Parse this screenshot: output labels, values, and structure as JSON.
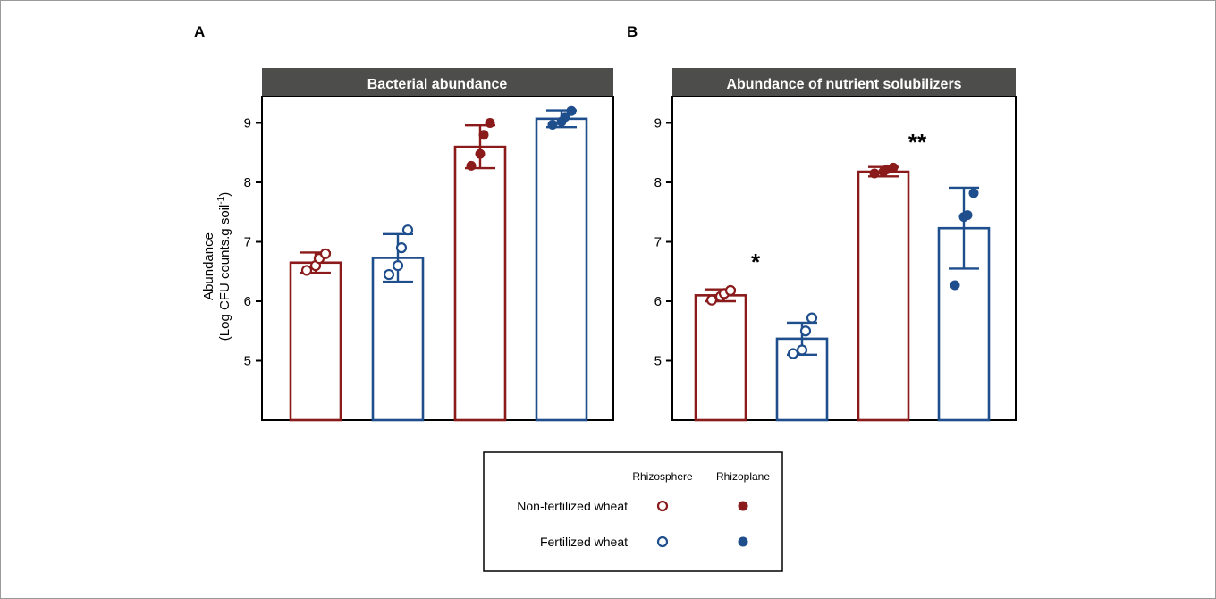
{
  "colors": {
    "non_fertilized": "#8b1a1a",
    "fertilized": "#1f4e8c",
    "header_bg": "#4d4d4b",
    "header_text": "#ffffff",
    "axis": "#000000"
  },
  "panel_letters": [
    "A",
    "B"
  ],
  "y_axis": {
    "label_line1": "Abundance",
    "label_line2_prefix": "(Log CFU counts.g soil",
    "label_line2_sup": "-1",
    "label_line2_suffix": ")"
  },
  "legend": {
    "col_rhizosphere": "Rhizosphere",
    "col_rhizoplane": "Rhizoplane",
    "row_non_fertilized": "Non-fertilized wheat",
    "row_fertilized": "Fertilized wheat"
  },
  "chart_data": [
    {
      "type": "bar",
      "panel": "A",
      "title": "Bacterial abundance",
      "ylabel": "Abundance (Log CFU counts.g soil-1)",
      "ylim": [
        4,
        9.5
      ],
      "yticks": [
        5,
        6,
        7,
        8,
        9
      ],
      "categories": [
        "Non-fertilized wheat Rhizosphere",
        "Fertilized wheat Rhizosphere",
        "Non-fertilized wheat Rhizoplane",
        "Fertilized wheat Rhizoplane"
      ],
      "values": [
        6.65,
        6.73,
        8.6,
        9.07
      ],
      "error": [
        0.17,
        0.4,
        0.36,
        0.14
      ],
      "points": [
        [
          6.52,
          6.6,
          6.72,
          6.8
        ],
        [
          6.45,
          6.6,
          6.9,
          7.2
        ],
        [
          8.28,
          8.48,
          8.8,
          9.0
        ],
        [
          8.97,
          9.02,
          9.1,
          9.2
        ]
      ],
      "series_group": [
        "non_fertilized",
        "fertilized",
        "non_fertilized",
        "fertilized"
      ],
      "marker": [
        "open",
        "open",
        "filled",
        "filled"
      ],
      "annotations": [
        "",
        "",
        "",
        ""
      ]
    },
    {
      "type": "bar",
      "panel": "B",
      "title": "Abundance of nutrient solubilizers",
      "ylabel": "Abundance (Log CFU counts.g soil-1)",
      "ylim": [
        4,
        9.5
      ],
      "yticks": [
        5,
        6,
        7,
        8,
        9
      ],
      "categories": [
        "Non-fertilized wheat Rhizosphere",
        "Fertilized wheat Rhizosphere",
        "Non-fertilized wheat Rhizoplane",
        "Fertilized wheat Rhizoplane"
      ],
      "values": [
        6.1,
        5.37,
        8.18,
        7.23
      ],
      "error": [
        0.1,
        0.27,
        0.08,
        0.68
      ],
      "points": [
        [
          6.02,
          6.08,
          6.13,
          6.18
        ],
        [
          5.12,
          5.18,
          5.5,
          5.72
        ],
        [
          8.15,
          8.18,
          8.22,
          8.25
        ],
        [
          6.27,
          7.42,
          7.45,
          7.82
        ]
      ],
      "series_group": [
        "non_fertilized",
        "fertilized",
        "non_fertilized",
        "fertilized"
      ],
      "marker": [
        "open",
        "open",
        "filled",
        "filled"
      ],
      "annotations": [
        "",
        "*",
        "",
        "**"
      ]
    }
  ]
}
